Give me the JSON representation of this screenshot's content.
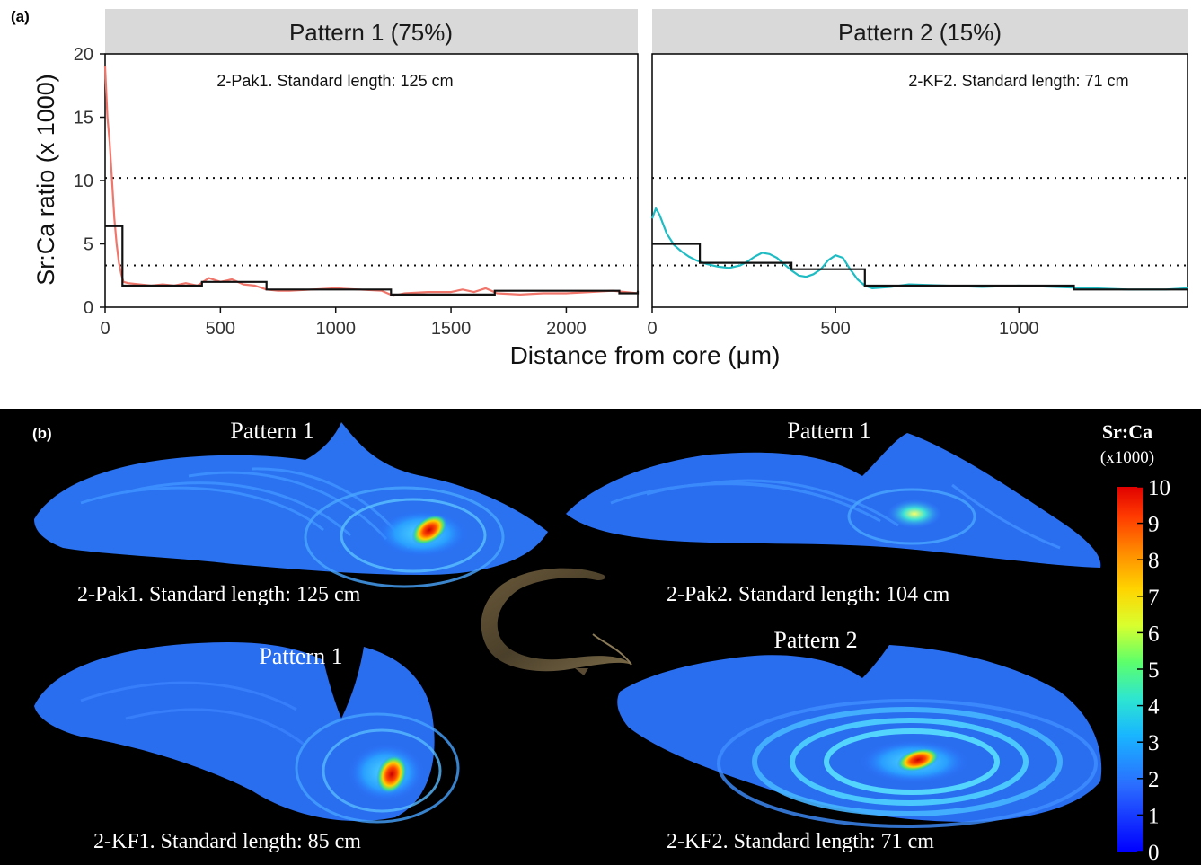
{
  "panel_a": {
    "label": "(a)",
    "ylabel": "Sr:Ca ratio (x 1000)",
    "xlabel": "Distance from core (μm)",
    "y_ticks": [
      "0",
      "5",
      "10",
      "15",
      "20"
    ],
    "colors": {
      "pattern1_raw": "#f0766b",
      "pattern2_raw": "#1fbcc4",
      "step": "#111111",
      "strip": "#d9d9d9"
    }
  },
  "panel_b": {
    "label": "(b)",
    "colorbar_title": "Sr:Ca",
    "colorbar_unit": "(x1000)",
    "colorbar_ticks": [
      "0",
      "1",
      "2",
      "3",
      "4",
      "5",
      "6",
      "7",
      "8",
      "9",
      "10"
    ],
    "otoliths": [
      {
        "pattern": "Pattern 1",
        "caption": "2-Pak1. Standard length: 125 cm"
      },
      {
        "pattern": "Pattern 1",
        "caption": "2-Pak2. Standard length: 104 cm"
      },
      {
        "pattern": "Pattern 1",
        "caption": "2-KF1. Standard length: 85 cm"
      },
      {
        "pattern": "Pattern 2",
        "caption": "2-KF2. Standard length: 71 cm"
      }
    ],
    "eel_icon": "eel-photo"
  },
  "chart_data": [
    {
      "type": "line",
      "title": "Pattern 1 (75%)",
      "annotation": "2-Pak1. Standard length: 125 cm",
      "xlim": [
        0,
        2310
      ],
      "ylim": [
        0,
        20
      ],
      "x_ticks": [
        "0",
        "500",
        "1000",
        "1500",
        "2000"
      ],
      "reference_lines_y": [
        10.2,
        3.3
      ],
      "series": [
        {
          "x": [
            0,
            10,
            20,
            30,
            40,
            50,
            60,
            70,
            80,
            100,
            150,
            200,
            250,
            300,
            350,
            400,
            450,
            500,
            550,
            600,
            650,
            700,
            750,
            800,
            900,
            1000,
            1100,
            1200,
            1250,
            1300,
            1400,
            1500,
            1550,
            1600,
            1650,
            1700,
            1800,
            1900,
            2000,
            2100,
            2200,
            2310
          ],
          "y": [
            19.0,
            15.0,
            13.0,
            10.0,
            7.0,
            5.0,
            3.5,
            2.6,
            2.0,
            1.9,
            1.8,
            1.7,
            1.8,
            1.7,
            1.9,
            1.7,
            2.3,
            2.0,
            2.2,
            1.8,
            1.7,
            1.4,
            1.3,
            1.3,
            1.4,
            1.5,
            1.4,
            1.3,
            0.9,
            1.1,
            1.2,
            1.2,
            1.4,
            1.2,
            1.5,
            1.1,
            1.0,
            1.1,
            1.1,
            1.2,
            1.3,
            1.1
          ]
        },
        {
          "type": "step",
          "x": [
            0,
            75,
            420,
            700,
            1240,
            1690,
            2230,
            2310
          ],
          "y": [
            6.4,
            1.7,
            2.0,
            1.4,
            1.0,
            1.3,
            1.1,
            1.3
          ]
        }
      ]
    },
    {
      "type": "line",
      "title": "Pattern 2 (15%)",
      "annotation": "2-KF2. Standard length: 71 cm",
      "xlim": [
        0,
        1460
      ],
      "ylim": [
        0,
        20
      ],
      "x_ticks": [
        "0",
        "500",
        "1000"
      ],
      "reference_lines_y": [
        10.2,
        3.3
      ],
      "series": [
        {
          "x": [
            0,
            10,
            20,
            40,
            60,
            80,
            100,
            120,
            150,
            180,
            210,
            240,
            260,
            280,
            300,
            320,
            340,
            360,
            380,
            400,
            420,
            440,
            460,
            480,
            500,
            520,
            540,
            560,
            580,
            600,
            650,
            700,
            800,
            900,
            1000,
            1100,
            1200,
            1300,
            1400,
            1460
          ],
          "y": [
            7.0,
            7.8,
            7.3,
            5.8,
            4.9,
            4.4,
            4.0,
            3.7,
            3.4,
            3.2,
            3.1,
            3.3,
            3.6,
            4.0,
            4.3,
            4.2,
            3.9,
            3.4,
            2.9,
            2.5,
            2.4,
            2.6,
            3.0,
            3.7,
            4.1,
            3.9,
            3.0,
            2.2,
            1.7,
            1.5,
            1.6,
            1.8,
            1.7,
            1.6,
            1.7,
            1.6,
            1.5,
            1.4,
            1.4,
            1.5
          ]
        },
        {
          "type": "step",
          "x": [
            0,
            130,
            380,
            580,
            1150,
            1460
          ],
          "y": [
            5.0,
            3.5,
            3.0,
            1.7,
            1.4,
            1.4
          ]
        }
      ]
    }
  ]
}
